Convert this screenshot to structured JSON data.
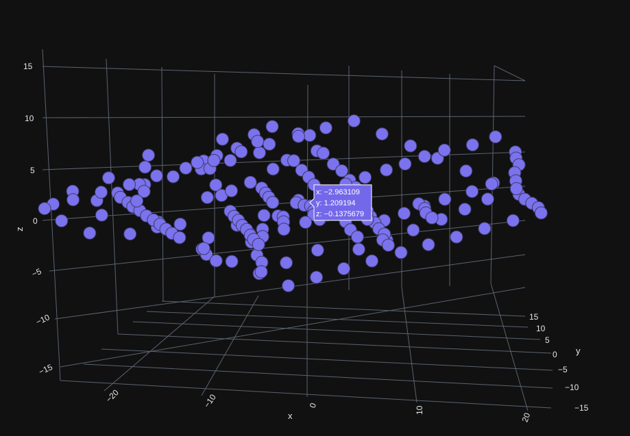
{
  "chart_data": {
    "type": "scatter3d",
    "colors": {
      "background": "#111111",
      "marker": "#7b72ee",
      "marker_outline": "#3c3a63",
      "grid": "#5b6472",
      "tick_text": "#e6e6e6",
      "tooltip": "#7468ea"
    },
    "axes": {
      "x": {
        "title": "x",
        "ticks": [
          "−20",
          "−10",
          "0",
          "10",
          "20"
        ],
        "tick_values": [
          -20,
          -10,
          0,
          10,
          20
        ],
        "range": [
          -25,
          22
        ]
      },
      "y": {
        "title": "y",
        "ticks": [
          "−15",
          "−10",
          "−5",
          "0",
          "5",
          "10",
          "15"
        ],
        "tick_values": [
          -15,
          -10,
          -5,
          0,
          5,
          10,
          15
        ],
        "range": [
          -17,
          17
        ]
      },
      "z": {
        "title": "z",
        "ticks": [
          "−15",
          "−10",
          "−5",
          "0",
          "5",
          "10",
          "15"
        ],
        "tick_values": [
          -15,
          -10,
          -5,
          0,
          5,
          10,
          15
        ],
        "range": [
          -17,
          17
        ]
      }
    },
    "hover": {
      "x": "x: −2.963109",
      "y": "y: 1.209194",
      "z": "z: −0.1375679"
    },
    "points": [
      [
        -2.96,
        1.21,
        -0.14
      ],
      [
        -9.5,
        3.2,
        4.1
      ],
      [
        -11.2,
        5.1,
        6.3
      ],
      [
        -13.4,
        7.8,
        9.6
      ],
      [
        -14.8,
        9.1,
        11.2
      ],
      [
        -12.6,
        8.4,
        13.5
      ],
      [
        -10.3,
        9.5,
        14.1
      ],
      [
        -8.1,
        8.7,
        14.6
      ],
      [
        -6.4,
        9.9,
        13.8
      ],
      [
        -4.2,
        8.1,
        12.7
      ],
      [
        -16.5,
        3.4,
        10.4
      ],
      [
        -18.9,
        1.2,
        7.1
      ],
      [
        -21.3,
        -0.4,
        5.2
      ],
      [
        -19.7,
        0.7,
        4.1
      ],
      [
        -22.4,
        -1.6,
        3.3
      ],
      [
        -20.1,
        2.1,
        2.7
      ],
      [
        -17.6,
        3.8,
        6.9
      ],
      [
        -15.9,
        1.9,
        8.3
      ],
      [
        -14.1,
        -1.2,
        3.9
      ],
      [
        -13.3,
        -3.6,
        1.8
      ],
      [
        -11.8,
        -2.7,
        -0.9
      ],
      [
        -10.6,
        -4.9,
        -2.4
      ],
      [
        -12.9,
        -5.3,
        -3.1
      ],
      [
        -9.4,
        -3.3,
        -1.7
      ],
      [
        -8.2,
        -1.1,
        2.3
      ],
      [
        -7.1,
        0.8,
        3.6
      ],
      [
        -6.3,
        2.4,
        5.1
      ],
      [
        -5.2,
        4.1,
        7.2
      ],
      [
        -4.6,
        6.3,
        8.9
      ],
      [
        -3.1,
        7.4,
        10.3
      ],
      [
        -1.7,
        6.1,
        9.4
      ],
      [
        -0.4,
        5.5,
        7.6
      ],
      [
        1.2,
        4.2,
        6.1
      ],
      [
        2.5,
        3.3,
        4.4
      ],
      [
        3.8,
        2.1,
        2.9
      ],
      [
        4.9,
        0.9,
        1.3
      ],
      [
        6.1,
        -0.6,
        -0.4
      ],
      [
        7.3,
        -1.8,
        -1.9
      ],
      [
        8.4,
        -3.1,
        -3.2
      ],
      [
        9.6,
        -4.4,
        -4.6
      ],
      [
        10.7,
        -5.6,
        -5.9
      ],
      [
        11.9,
        -6.7,
        -7.1
      ],
      [
        12.6,
        -8.1,
        -8.4
      ],
      [
        13.8,
        -9.2,
        -9.6
      ],
      [
        5.3,
        -6.2,
        -8.1
      ],
      [
        3.7,
        -8.4,
        -10.2
      ],
      [
        1.9,
        -9.3,
        -11.4
      ],
      [
        0.6,
        -7.1,
        -9.3
      ],
      [
        -0.9,
        -5.4,
        -7.6
      ],
      [
        -2.4,
        -3.8,
        -5.2
      ],
      [
        -3.6,
        -2.1,
        -3.4
      ],
      [
        -1.3,
        -0.7,
        -1.1
      ],
      [
        0.3,
        0.9,
        0.6
      ],
      [
        -2.1,
        2.6,
        1.9
      ],
      [
        -4.4,
        1.4,
        0.2
      ],
      [
        -5.9,
        -0.3,
        -1.4
      ],
      [
        -7.6,
        -1.9,
        -3.3
      ],
      [
        -6.8,
        -4.2,
        -5.6
      ],
      [
        -5.1,
        -6.3,
        -7.2
      ],
      [
        -3.2,
        -7.9,
        -8.8
      ],
      [
        7.8,
        9.2,
        9.4
      ],
      [
        9.1,
        11.4,
        10.6
      ],
      [
        10.4,
        12.8,
        11.9
      ],
      [
        11.6,
        13.9,
        10.1
      ],
      [
        12.7,
        12.2,
        8.6
      ],
      [
        13.9,
        10.7,
        7.1
      ],
      [
        14.6,
        8.9,
        5.4
      ],
      [
        15.8,
        7.1,
        3.6
      ],
      [
        16.9,
        5.4,
        1.9
      ],
      [
        15.3,
        3.6,
        0.2
      ],
      [
        14.2,
        1.9,
        -1.5
      ],
      [
        12.9,
        0.4,
        -3.1
      ],
      [
        11.3,
        -1.3,
        -4.8
      ],
      [
        9.8,
        -2.9,
        -6.4
      ],
      [
        8.2,
        -4.6,
        -7.9
      ],
      [
        6.6,
        -2.2,
        -5.3
      ],
      [
        4.9,
        -0.5,
        -3.6
      ],
      [
        3.4,
        1.2,
        -1.8
      ],
      [
        1.8,
        2.9,
        -0.1
      ],
      [
        0.2,
        4.6,
        1.6
      ],
      [
        -1.4,
        6.2,
        3.4
      ],
      [
        -3.1,
        7.9,
        5.1
      ],
      [
        -4.7,
        9.6,
        6.8
      ],
      [
        -6.2,
        11.2,
        8.5
      ],
      [
        -7.9,
        12.9,
        10.2
      ],
      [
        -9.6,
        13.4,
        11.9
      ],
      [
        -11.2,
        11.8,
        12.6
      ],
      [
        -12.9,
        10.1,
        11.3
      ],
      [
        -14.6,
        8.4,
        9.9
      ],
      [
        -16.2,
        6.7,
        8.6
      ],
      [
        -17.9,
        5.1,
        7.3
      ],
      [
        -19.4,
        3.4,
        5.9
      ],
      [
        -18.1,
        1.7,
        4.6
      ],
      [
        -16.4,
        0.1,
        3.2
      ],
      [
        -14.9,
        -1.6,
        1.9
      ],
      [
        -13.2,
        -3.3,
        0.6
      ],
      [
        -11.6,
        -4.9,
        -0.8
      ],
      [
        -9.9,
        -6.6,
        -2.1
      ],
      [
        -8.3,
        -8.2,
        -3.4
      ],
      [
        -6.7,
        -9.9,
        -4.8
      ],
      [
        -5.1,
        -11.6,
        -6.1
      ],
      [
        -3.4,
        -13.2,
        -7.4
      ],
      [
        -1.8,
        -12.1,
        -8.7
      ],
      [
        -0.2,
        -10.4,
        -10.1
      ],
      [
        1.4,
        -8.8,
        -11.4
      ],
      [
        3.1,
        -7.1,
        -12.7
      ],
      [
        4.7,
        -5.4,
        -11.3
      ],
      [
        6.3,
        -3.8,
        -9.9
      ],
      [
        7.9,
        -2.1,
        -8.6
      ],
      [
        9.6,
        -0.4,
        -7.2
      ],
      [
        11.2,
        1.2,
        -5.9
      ],
      [
        12.8,
        2.9,
        -4.6
      ],
      [
        14.4,
        4.6,
        -3.2
      ],
      [
        16.1,
        6.2,
        -1.9
      ],
      [
        17.7,
        7.9,
        -0.6
      ],
      [
        16.4,
        9.6,
        0.8
      ],
      [
        14.8,
        11.2,
        2.1
      ],
      [
        13.1,
        12.9,
        3.4
      ],
      [
        11.5,
        14.6,
        4.8
      ],
      [
        9.9,
        13.3,
        6.1
      ],
      [
        8.3,
        11.7,
        7.4
      ],
      [
        6.6,
        10.1,
        8.8
      ],
      [
        5.1,
        8.4,
        10.1
      ],
      [
        3.4,
        6.8,
        11.4
      ],
      [
        1.8,
        5.1,
        12.8
      ],
      [
        0.2,
        3.4,
        11.6
      ],
      [
        -1.4,
        1.8,
        10.2
      ],
      [
        -3.1,
        0.1,
        8.9
      ],
      [
        -4.7,
        -1.6,
        7.6
      ],
      [
        -6.3,
        -3.2,
        6.2
      ],
      [
        -7.9,
        -4.9,
        4.9
      ],
      [
        -9.6,
        -6.6,
        3.6
      ],
      [
        -11.2,
        -8.2,
        2.2
      ],
      [
        -12.8,
        -9.9,
        0.9
      ],
      [
        -14.4,
        -11.6,
        -0.4
      ],
      [
        -16.1,
        -13.2,
        -1.8
      ],
      [
        -15.3,
        -11.9,
        -3.1
      ],
      [
        -13.7,
        -10.2,
        -4.4
      ],
      [
        -2.2,
        3.1,
        2.4
      ],
      [
        -1.1,
        2.2,
        1.3
      ],
      [
        0.9,
        1.6,
        0.1
      ],
      [
        1.7,
        -0.9,
        -0.8
      ],
      [
        2.6,
        -2.4,
        -1.9
      ],
      [
        3.9,
        -3.6,
        -3.1
      ],
      [
        -0.6,
        -1.8,
        -2.2
      ],
      [
        -1.9,
        -2.9,
        -3.3
      ],
      [
        2.2,
        0.4,
        2.1
      ],
      [
        3.1,
        1.7,
        3.3
      ],
      [
        4.2,
        2.9,
        4.4
      ],
      [
        5.4,
        4.2,
        5.6
      ],
      [
        6.3,
        5.6,
        6.7
      ],
      [
        7.4,
        6.8,
        7.9
      ],
      [
        -5.6,
        4.7,
        3.1
      ],
      [
        -6.7,
        5.9,
        4.3
      ],
      [
        -7.8,
        7.2,
        5.4
      ],
      [
        -8.9,
        8.4,
        6.6
      ],
      [
        8.8,
        -6.1,
        -2.8
      ],
      [
        10.1,
        -7.3,
        -3.9
      ],
      [
        11.4,
        -8.6,
        -5.1
      ],
      [
        12.2,
        -9.8,
        -6.2
      ],
      [
        6.9,
        -7.4,
        -4.1
      ],
      [
        5.7,
        -8.7,
        -5.3
      ],
      [
        4.4,
        -9.9,
        -6.4
      ],
      [
        3.2,
        -11.2,
        -7.6
      ],
      [
        13.6,
        -4.2,
        -2.6
      ],
      [
        14.9,
        -5.4,
        -3.8
      ],
      [
        15.8,
        -6.7,
        -4.9
      ],
      [
        17.1,
        -7.9,
        -6.1
      ],
      [
        -10.8,
        1.6,
        8.1
      ],
      [
        -9.7,
        2.8,
        9.2
      ],
      [
        -8.6,
        4.1,
        10.4
      ],
      [
        -7.4,
        5.3,
        11.5
      ],
      [
        10.6,
        4.7,
        1.2
      ],
      [
        9.4,
        3.5,
        0.1
      ],
      [
        8.3,
        2.2,
        -1.1
      ],
      [
        7.1,
        1.1,
        -2.2
      ],
      [
        12.3,
        6.1,
        2.4
      ],
      [
        13.4,
        7.3,
        3.6
      ],
      [
        -3.9,
        -4.6,
        -1.2
      ],
      [
        -2.8,
        -5.8,
        -2.4
      ],
      [
        -1.6,
        -7.1,
        -3.5
      ],
      [
        -0.5,
        -8.3,
        -4.7
      ],
      [
        0.7,
        -9.6,
        -5.8
      ],
      [
        1.8,
        -10.8,
        -7.1
      ],
      [
        2.9,
        -12.1,
        -8.2
      ],
      [
        4.1,
        -13.3,
        -9.4
      ]
    ]
  }
}
